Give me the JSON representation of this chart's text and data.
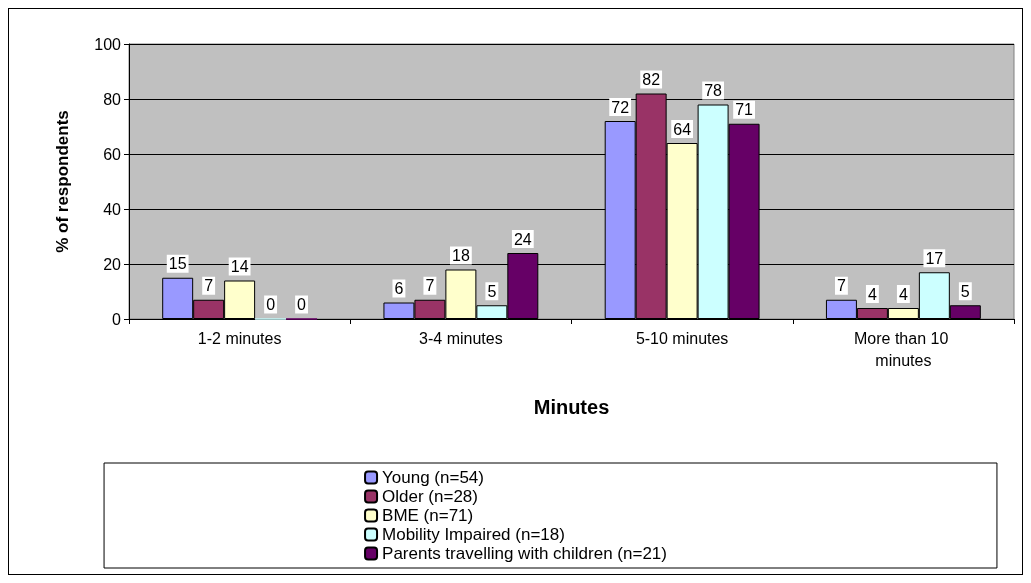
{
  "chart_data": {
    "type": "bar",
    "xlabel": "Minutes",
    "ylabel": "% of respondents",
    "categories": [
      "1-2 minutes",
      "3-4 minutes",
      "5-10 minutes",
      "More than 10 minutes"
    ],
    "series": [
      {
        "name": "Young (n=54)",
        "color": "#9999ff",
        "values": [
          15,
          6,
          72,
          7
        ]
      },
      {
        "name": "Older (n=28)",
        "color": "#993366",
        "values": [
          7,
          7,
          82,
          4
        ]
      },
      {
        "name": "BME (n=71)",
        "color": "#ffffcc",
        "values": [
          14,
          18,
          64,
          4
        ]
      },
      {
        "name": "Mobility Impaired (n=18)",
        "color": "#ccffff",
        "values": [
          0,
          5,
          78,
          17
        ]
      },
      {
        "name": "Parents travelling with children (n=21)",
        "color": "#660066",
        "values": [
          0,
          24,
          71,
          5
        ]
      }
    ],
    "ylim": [
      0,
      100
    ],
    "yticks": [
      0,
      20,
      40,
      60,
      80,
      100
    ],
    "grid": "y",
    "legend": "bottom",
    "data_labels": true
  }
}
